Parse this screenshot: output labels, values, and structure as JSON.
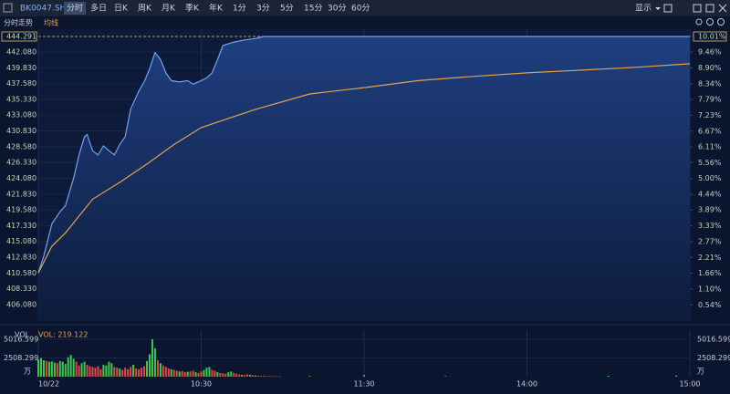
{
  "toolbar": {
    "code": "BK0047.SH",
    "tabs": [
      "分时",
      "多日",
      "日K",
      "周K",
      "月K",
      "季K",
      "年K",
      "1分",
      "3分",
      "5分",
      "15分",
      "30分",
      "60分"
    ],
    "display": "显示"
  },
  "chart_data": [
    {
      "type": "line",
      "xlim": [
        0,
        240
      ],
      "ylim": [
        403.73,
        444.291
      ],
      "y2lim": [
        -0.03,
        10.01
      ],
      "yticks": [
        444.291,
        {
          "value": 442.08,
          "label": "442.080"
        },
        {
          "value": 439.83,
          "label": "439.830"
        },
        {
          "value": 437.58,
          "label": "437.580"
        },
        {
          "value": 435.33,
          "label": "435.330"
        },
        {
          "value": 433.08,
          "label": "433.080"
        },
        {
          "value": 430.83,
          "label": "430.830"
        },
        {
          "value": 428.58,
          "label": "428.580"
        },
        {
          "value": 426.33,
          "label": "426.330"
        },
        {
          "value": 424.08,
          "label": "424.080"
        },
        {
          "value": 421.83,
          "label": "421.830"
        },
        {
          "value": 419.58,
          "label": "419.580"
        },
        {
          "value": 417.33,
          "label": "417.330"
        },
        {
          "value": 415.08,
          "label": "415.080"
        },
        {
          "value": 412.83,
          "label": "412.830"
        },
        {
          "value": 410.58,
          "label": "410.580"
        },
        {
          "value": 408.33,
          "label": "408.330"
        },
        {
          "value": 406.08,
          "label": "406.080"
        }
      ],
      "y2ticks": [
        {
          "value": 10.01,
          "label": "10.01%"
        },
        {
          "value": 9.46,
          "label": "9.46%"
        },
        {
          "value": 8.9,
          "label": "8.90%"
        },
        {
          "value": 8.34,
          "label": "8.34%"
        },
        {
          "value": 7.79,
          "label": "7.79%"
        },
        {
          "value": 7.23,
          "label": "7.23%"
        },
        {
          "value": 6.67,
          "label": "6.67%"
        },
        {
          "value": 6.11,
          "label": "6.11%"
        },
        {
          "value": 5.56,
          "label": "5.56%"
        },
        {
          "value": 5,
          "label": "5.00%"
        },
        {
          "value": 4.44,
          "label": "4.44%"
        },
        {
          "value": 3.89,
          "label": "3.89%"
        },
        {
          "value": 3.33,
          "label": "3.33%"
        },
        {
          "value": 2.77,
          "label": "2.77%"
        },
        {
          "value": 2.21,
          "label": "2.21%"
        },
        {
          "value": 1.66,
          "label": "1.66%"
        },
        {
          "value": 1.1,
          "label": "1.10%"
        },
        {
          "value": 0.54,
          "label": "0.54%"
        }
      ],
      "grid": true,
      "series": [
        {
          "name": "分时走势",
          "color": "#6fa2f2",
          "x": [
            0,
            2,
            5,
            8,
            10,
            13,
            15,
            17,
            18,
            20,
            22,
            24,
            26,
            28,
            30,
            32,
            34,
            37,
            39,
            41,
            43,
            45,
            47,
            49,
            52,
            55,
            57,
            60,
            62,
            64,
            66,
            68,
            72,
            76,
            80,
            83,
            240
          ],
          "values": [
            410.6,
            413.0,
            417.6,
            419.3,
            420.2,
            424.1,
            427.4,
            430.0,
            430.3,
            428.0,
            427.4,
            428.7,
            428.0,
            427.4,
            428.9,
            430.0,
            433.9,
            436.5,
            437.8,
            439.7,
            442.0,
            441.0,
            439.1,
            438.0,
            437.8,
            438.0,
            437.5,
            438.0,
            438.4,
            439.1,
            441.0,
            443.0,
            443.5,
            443.8,
            444.0,
            444.291,
            444.291
          ]
        },
        {
          "name": "均线",
          "color": "#e3a24a",
          "x": [
            0,
            5,
            10,
            20,
            30,
            40,
            50,
            60,
            80,
            100,
            120,
            140,
            160,
            180,
            200,
            220,
            240
          ],
          "values": [
            410.6,
            414.4,
            416.3,
            421.1,
            423.5,
            426.1,
            428.9,
            431.3,
            433.9,
            436.1,
            437.0,
            438.0,
            438.6,
            439.1,
            439.5,
            439.9,
            440.4
          ]
        }
      ]
    },
    {
      "type": "volume",
      "title": "VOL",
      "label": "VOL: 219.122",
      "unit": "万",
      "xlim": [
        0,
        240
      ],
      "ylim": [
        0,
        6230
      ],
      "yticks": [
        5016.599,
        2508.299
      ],
      "xticks": [
        {
          "value": 0,
          "label": "10/22"
        },
        {
          "value": 60,
          "label": "10:30"
        },
        {
          "value": 120,
          "label": "11:30"
        },
        {
          "value": 180,
          "label": "14:00"
        },
        {
          "value": 240,
          "label": "15:00"
        }
      ],
      "volume_up": {
        "color": "#3fc94a",
        "x": [
          0,
          1,
          2,
          4,
          5,
          6,
          8,
          9,
          10,
          11,
          12,
          13,
          16,
          17,
          24,
          25,
          26,
          27,
          30,
          35,
          40,
          41,
          42,
          43,
          45,
          49,
          52,
          55,
          58,
          61,
          62,
          63,
          66,
          70,
          71,
          75,
          78,
          80,
          83,
          86,
          89,
          100,
          120,
          150,
          210,
          235
        ],
        "values": [
          2300,
          2500,
          2200,
          2000,
          2050,
          1900,
          2100,
          2000,
          1700,
          2600,
          2900,
          2400,
          1800,
          2000,
          1600,
          1500,
          2000,
          1800,
          1100,
          1600,
          2100,
          3000,
          5000,
          3800,
          1800,
          1000,
          700,
          650,
          600,
          900,
          1200,
          1300,
          600,
          600,
          700,
          250,
          250,
          150,
          90,
          60,
          40,
          100,
          200,
          80,
          120,
          150
        ]
      },
      "volume_down": {
        "color": "#e04848",
        "x": [
          3,
          7,
          14,
          15,
          18,
          19,
          20,
          21,
          22,
          23,
          28,
          29,
          31,
          32,
          33,
          34,
          36,
          37,
          38,
          39,
          44,
          46,
          47,
          48,
          50,
          51,
          53,
          54,
          56,
          57,
          59,
          60,
          64,
          65,
          67,
          68,
          69,
          72,
          73,
          74,
          76,
          77,
          79,
          81,
          82,
          84,
          85,
          87,
          88
        ],
        "values": [
          2100,
          1800,
          2000,
          1500,
          1600,
          1400,
          1300,
          1200,
          1400,
          1000,
          1300,
          1200,
          900,
          1200,
          1000,
          1300,
          1100,
          1000,
          1200,
          1400,
          2200,
          1500,
          1300,
          1100,
          900,
          800,
          750,
          600,
          700,
          800,
          500,
          700,
          900,
          800,
          500,
          450,
          400,
          500,
          400,
          300,
          200,
          300,
          200,
          120,
          100,
          80,
          70,
          50,
          60
        ]
      }
    }
  ]
}
